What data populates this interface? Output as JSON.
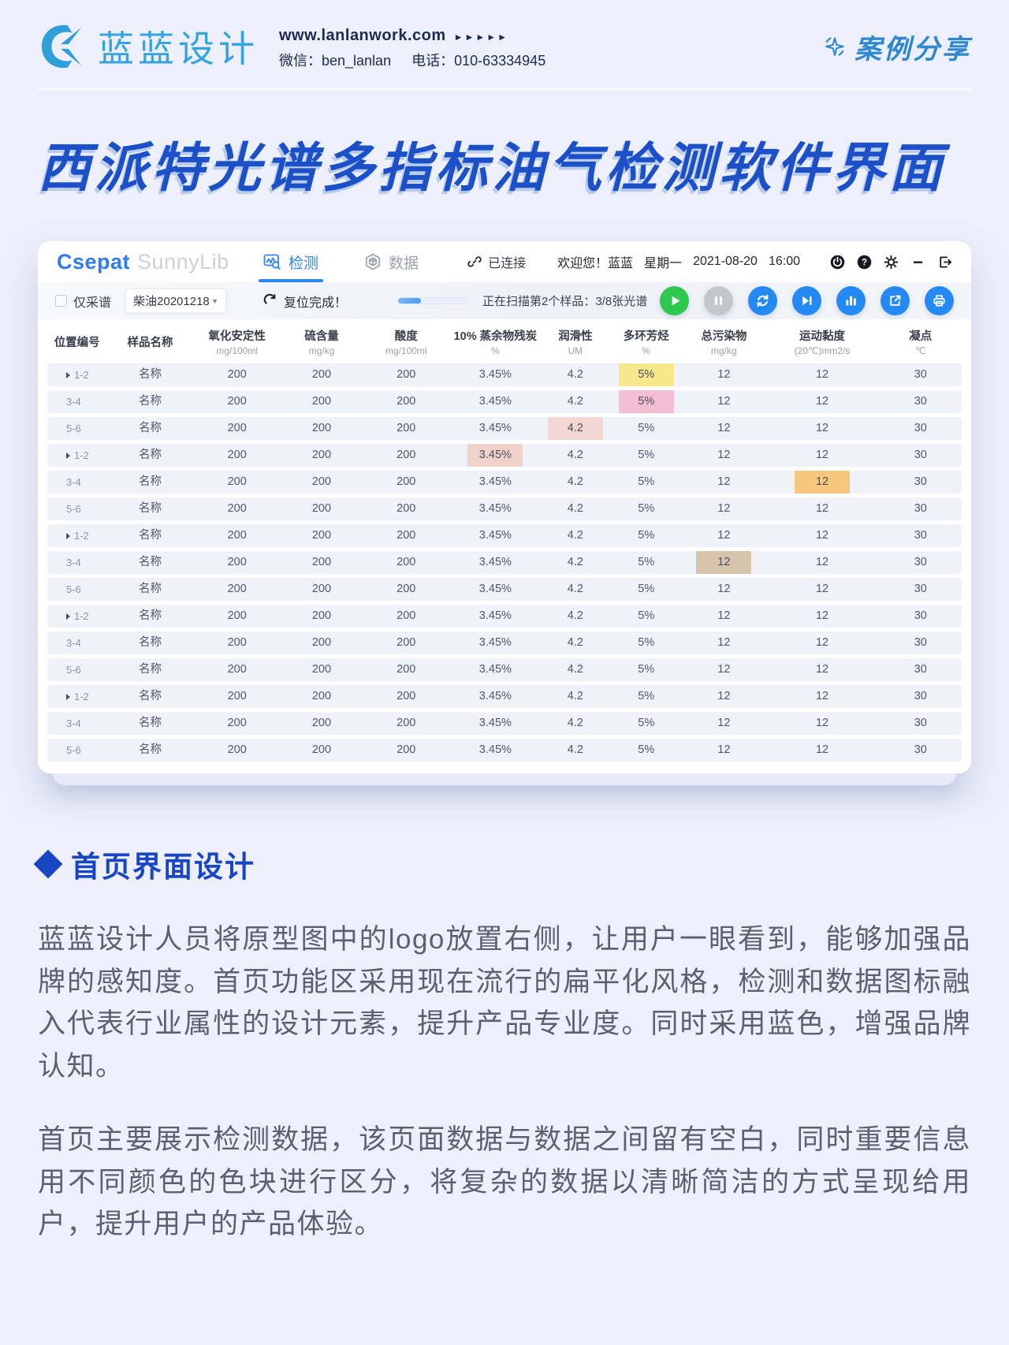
{
  "header": {
    "logo_text": "蓝蓝设计",
    "website": "www.lanlanwork.com",
    "website_arrows": "►►►►►",
    "wechat": "微信：ben_lanlan",
    "phone": "电话：010-63334945",
    "case_share": "案例分享"
  },
  "title": "西派特光谱多指标油气检测软件界面",
  "app": {
    "brand": {
      "primary": "Csepat",
      "secondary": "SunnyLib"
    },
    "tabs": [
      {
        "label": "检测",
        "active": true
      },
      {
        "label": "数据",
        "active": false
      }
    ],
    "status": {
      "connected": "已连接",
      "welcome": "欢迎您！蓝蓝",
      "weekday": "星期一",
      "date": "2021-08-20",
      "time": "16:00"
    },
    "window_icons": [
      "power-icon",
      "help-icon",
      "settings-icon",
      "minimize-icon",
      "exit-icon"
    ],
    "toolbar": {
      "checkbox_label": "仅采谱",
      "select_value": "柴油20201218",
      "reset_label": "复位完成！",
      "progress_percent": 33,
      "scan_status": "正在扫描第2个样品：3/8张光谱",
      "buttons": [
        {
          "name": "play",
          "icon": "play",
          "color": "#2ec84e"
        },
        {
          "name": "pause",
          "icon": "pause",
          "color": "#c3c7cd"
        },
        {
          "name": "sync",
          "icon": "sync",
          "color": "#2489f2"
        },
        {
          "name": "skip-next",
          "icon": "next",
          "color": "#2489f2"
        },
        {
          "name": "bar-chart",
          "icon": "chart",
          "color": "#2489f2"
        },
        {
          "name": "export",
          "icon": "export",
          "color": "#2489f2"
        },
        {
          "name": "print",
          "icon": "print",
          "color": "#2489f2"
        }
      ]
    },
    "table": {
      "columns": [
        {
          "label": "位置编号",
          "unit": ""
        },
        {
          "label": "样品名称",
          "unit": ""
        },
        {
          "label": "氧化安定性",
          "unit": "mg/100ml"
        },
        {
          "label": "硫含量",
          "unit": "mg/kg"
        },
        {
          "label": "酸度",
          "unit": "mg/100ml"
        },
        {
          "label": "10% 蒸余物残炭",
          "unit": "%"
        },
        {
          "label": "润滑性",
          "unit": "UM"
        },
        {
          "label": "多环芳烃",
          "unit": "%"
        },
        {
          "label": "总污染物",
          "unit": "mg/kg"
        },
        {
          "label": "运动黏度",
          "unit": "(20℃)mm2/s"
        },
        {
          "label": "凝点",
          "unit": "℃"
        }
      ],
      "rows": [
        {
          "pos": "1-2",
          "expand": true,
          "cells": [
            "名称",
            "200",
            "200",
            "200",
            "3.45%",
            "4.2",
            "5%",
            "12",
            "12",
            "30"
          ],
          "highlight": {
            "col": 7,
            "color": "#f8e88d"
          }
        },
        {
          "pos": "3-4",
          "expand": false,
          "cells": [
            "名称",
            "200",
            "200",
            "200",
            "3.45%",
            "4.2",
            "5%",
            "12",
            "12",
            "30"
          ],
          "highlight": {
            "col": 7,
            "color": "#f3bed2"
          }
        },
        {
          "pos": "5-6",
          "expand": false,
          "cells": [
            "名称",
            "200",
            "200",
            "200",
            "3.45%",
            "4.2",
            "5%",
            "12",
            "12",
            "30"
          ],
          "highlight": {
            "col": 6,
            "color": "#f3d7d2"
          }
        },
        {
          "pos": "1-2",
          "expand": true,
          "cells": [
            "名称",
            "200",
            "200",
            "200",
            "3.45%",
            "4.2",
            "5%",
            "12",
            "12",
            "30"
          ],
          "highlight": {
            "col": 5,
            "color": "#f1d2ca"
          }
        },
        {
          "pos": "3-4",
          "expand": false,
          "cells": [
            "名称",
            "200",
            "200",
            "200",
            "3.45%",
            "4.2",
            "5%",
            "12",
            "12",
            "30"
          ],
          "highlight": {
            "col": 9,
            "color": "#f6c77c"
          }
        },
        {
          "pos": "5-6",
          "expand": false,
          "cells": [
            "名称",
            "200",
            "200",
            "200",
            "3.45%",
            "4.2",
            "5%",
            "12",
            "12",
            "30"
          ],
          "highlight": null
        },
        {
          "pos": "1-2",
          "expand": true,
          "cells": [
            "名称",
            "200",
            "200",
            "200",
            "3.45%",
            "4.2",
            "5%",
            "12",
            "12",
            "30"
          ],
          "highlight": null
        },
        {
          "pos": "3-4",
          "expand": false,
          "cells": [
            "名称",
            "200",
            "200",
            "200",
            "3.45%",
            "4.2",
            "5%",
            "12",
            "12",
            "30"
          ],
          "highlight": {
            "col": 8,
            "color": "#d7c4ad"
          }
        },
        {
          "pos": "5-6",
          "expand": false,
          "cells": [
            "名称",
            "200",
            "200",
            "200",
            "3.45%",
            "4.2",
            "5%",
            "12",
            "12",
            "30"
          ],
          "highlight": null
        },
        {
          "pos": "1-2",
          "expand": true,
          "cells": [
            "名称",
            "200",
            "200",
            "200",
            "3.45%",
            "4.2",
            "5%",
            "12",
            "12",
            "30"
          ],
          "highlight": null
        },
        {
          "pos": "3-4",
          "expand": false,
          "cells": [
            "名称",
            "200",
            "200",
            "200",
            "3.45%",
            "4.2",
            "5%",
            "12",
            "12",
            "30"
          ],
          "highlight": null
        },
        {
          "pos": "5-6",
          "expand": false,
          "cells": [
            "名称",
            "200",
            "200",
            "200",
            "3.45%",
            "4.2",
            "5%",
            "12",
            "12",
            "30"
          ],
          "highlight": null
        },
        {
          "pos": "1-2",
          "expand": true,
          "cells": [
            "名称",
            "200",
            "200",
            "200",
            "3.45%",
            "4.2",
            "5%",
            "12",
            "12",
            "30"
          ],
          "highlight": null
        },
        {
          "pos": "3-4",
          "expand": false,
          "cells": [
            "名称",
            "200",
            "200",
            "200",
            "3.45%",
            "4.2",
            "5%",
            "12",
            "12",
            "30"
          ],
          "highlight": null
        },
        {
          "pos": "5-6",
          "expand": false,
          "cells": [
            "名称",
            "200",
            "200",
            "200",
            "3.45%",
            "4.2",
            "5%",
            "12",
            "12",
            "30"
          ],
          "highlight": null
        }
      ]
    }
  },
  "section": {
    "heading": "首页界面设计",
    "paragraphs": [
      "蓝蓝设计人员将原型图中的logo放置右侧，让用户一眼看到，能够加强品牌的感知度。首页功能区采用现在流行的扁平化风格，检测和数据图标融入代表行业属性的设计元素，提升产品专业度。同时采用蓝色，增强品牌认知。",
      "首页主要展示检测数据，该页面数据与数据之间留有空白，同时重要信息用不同颜色的色块进行区分，将复杂的数据以清晰简洁的方式呈现给用户，提升用户的产品体验。"
    ]
  },
  "icons": {
    "caret": "▼",
    "minimize": "−"
  },
  "colors": {
    "accent_blue": "#1b50c8",
    "app_blue": "#2e86f2",
    "logo_blue": "#35a3dd",
    "highlight_yellow": "#f8e88d",
    "highlight_pink": "#f3bed2",
    "highlight_salmon": "#f1d2ca",
    "highlight_orange": "#f6c77c",
    "highlight_tan": "#d7c4ad"
  }
}
